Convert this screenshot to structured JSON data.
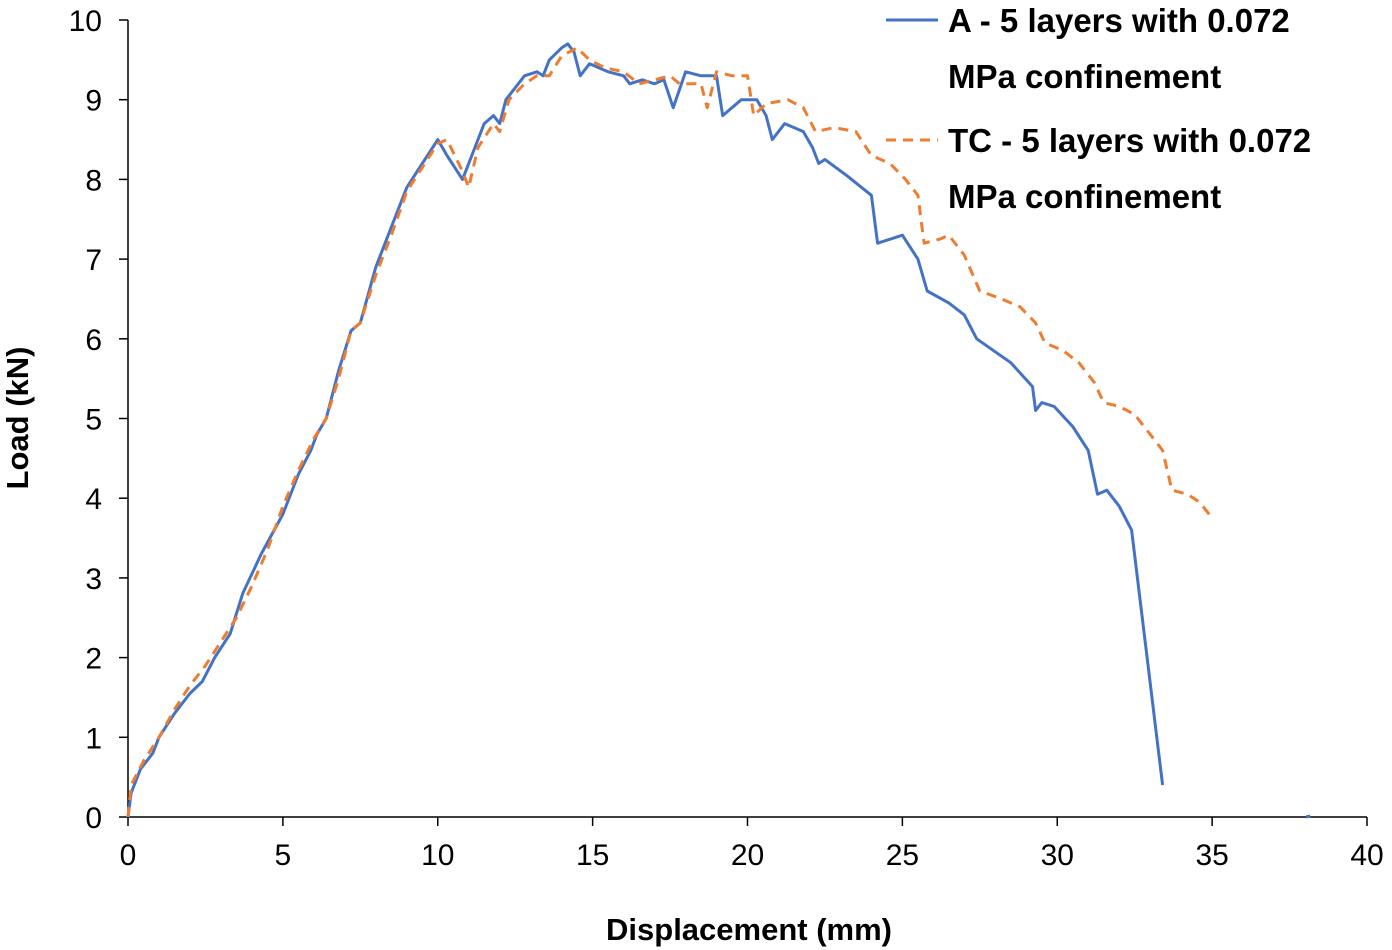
{
  "chart_data": {
    "type": "line",
    "title": "",
    "xlabel": "Displacement (mm)",
    "ylabel": "Load (kN)",
    "xlim": [
      0,
      40
    ],
    "ylim": [
      0,
      10
    ],
    "x_ticks": [
      "0",
      "5",
      "10",
      "15",
      "20",
      "25",
      "30",
      "35",
      "40"
    ],
    "y_ticks": [
      "0",
      "1",
      "2",
      "3",
      "4",
      "5",
      "6",
      "7",
      "8",
      "9",
      "10"
    ],
    "grid": false,
    "legend_position": "top-right",
    "series": [
      {
        "name": "A - 5 layers with 0.072 MPa confinement",
        "legend_lines": [
          "A - 5 layers with 0.072",
          "MPa confinement"
        ],
        "color": "#4472C4",
        "dash": "solid",
        "points": [
          [
            0,
            0.0
          ],
          [
            0.1,
            0.3
          ],
          [
            0.4,
            0.6
          ],
          [
            0.8,
            0.8
          ],
          [
            1.0,
            1.0
          ],
          [
            1.5,
            1.3
          ],
          [
            2.0,
            1.55
          ],
          [
            2.4,
            1.7
          ],
          [
            2.8,
            2.0
          ],
          [
            3.3,
            2.3
          ],
          [
            3.7,
            2.8
          ],
          [
            4.3,
            3.3
          ],
          [
            5.0,
            3.8
          ],
          [
            5.5,
            4.3
          ],
          [
            5.9,
            4.6
          ],
          [
            6.1,
            4.8
          ],
          [
            6.4,
            5.0
          ],
          [
            6.8,
            5.6
          ],
          [
            7.2,
            6.1
          ],
          [
            7.5,
            6.2
          ],
          [
            8.0,
            6.9
          ],
          [
            8.5,
            7.4
          ],
          [
            9.0,
            7.9
          ],
          [
            9.5,
            8.2
          ],
          [
            10.0,
            8.5
          ],
          [
            10.3,
            8.3
          ],
          [
            10.8,
            8.0
          ],
          [
            11.0,
            8.2
          ],
          [
            11.5,
            8.7
          ],
          [
            11.8,
            8.8
          ],
          [
            12.0,
            8.7
          ],
          [
            12.2,
            9.0
          ],
          [
            12.8,
            9.3
          ],
          [
            13.2,
            9.35
          ],
          [
            13.4,
            9.3
          ],
          [
            13.6,
            9.5
          ],
          [
            14.0,
            9.65
          ],
          [
            14.2,
            9.7
          ],
          [
            14.4,
            9.6
          ],
          [
            14.6,
            9.3
          ],
          [
            14.9,
            9.45
          ],
          [
            15.5,
            9.35
          ],
          [
            16.0,
            9.3
          ],
          [
            16.2,
            9.2
          ],
          [
            16.6,
            9.25
          ],
          [
            17.0,
            9.2
          ],
          [
            17.3,
            9.25
          ],
          [
            17.6,
            8.9
          ],
          [
            18.0,
            9.35
          ],
          [
            18.5,
            9.3
          ],
          [
            19.0,
            9.3
          ],
          [
            19.2,
            8.8
          ],
          [
            19.8,
            9.0
          ],
          [
            20.3,
            9.0
          ],
          [
            20.6,
            8.8
          ],
          [
            20.8,
            8.5
          ],
          [
            21.2,
            8.7
          ],
          [
            21.8,
            8.6
          ],
          [
            22.1,
            8.4
          ],
          [
            22.3,
            8.2
          ],
          [
            22.5,
            8.25
          ],
          [
            23.2,
            8.05
          ],
          [
            24.0,
            7.8
          ],
          [
            24.2,
            7.2
          ],
          [
            25.0,
            7.3
          ],
          [
            25.5,
            7.0
          ],
          [
            25.8,
            6.6
          ],
          [
            26.5,
            6.45
          ],
          [
            27.0,
            6.3
          ],
          [
            27.4,
            6.0
          ],
          [
            28.5,
            5.7
          ],
          [
            29.2,
            5.4
          ],
          [
            29.3,
            5.1
          ],
          [
            29.5,
            5.2
          ],
          [
            29.9,
            5.15
          ],
          [
            30.5,
            4.9
          ],
          [
            31.0,
            4.6
          ],
          [
            31.3,
            4.05
          ],
          [
            31.6,
            4.1
          ],
          [
            32.0,
            3.9
          ],
          [
            32.4,
            3.6
          ],
          [
            33.4,
            0.4
          ]
        ]
      },
      {
        "name": "TC - 5 layers with 0.072 MPa confinement",
        "legend_lines": [
          "TC - 5 layers with 0.072",
          "MPa confinement"
        ],
        "color": "#ED7D31",
        "dash": "dashed",
        "points": [
          [
            0,
            0.0
          ],
          [
            0.1,
            0.4
          ],
          [
            0.5,
            0.7
          ],
          [
            1.0,
            1.0
          ],
          [
            1.5,
            1.35
          ],
          [
            2.0,
            1.65
          ],
          [
            2.5,
            1.9
          ],
          [
            3.0,
            2.2
          ],
          [
            3.5,
            2.5
          ],
          [
            4.0,
            2.9
          ],
          [
            4.5,
            3.35
          ],
          [
            5.0,
            3.9
          ],
          [
            5.5,
            4.35
          ],
          [
            6.0,
            4.75
          ],
          [
            6.4,
            5.0
          ],
          [
            6.8,
            5.5
          ],
          [
            7.2,
            6.1
          ],
          [
            7.5,
            6.2
          ],
          [
            8.0,
            6.8
          ],
          [
            8.5,
            7.3
          ],
          [
            9.0,
            7.85
          ],
          [
            9.5,
            8.15
          ],
          [
            10.0,
            8.45
          ],
          [
            10.3,
            8.5
          ],
          [
            10.8,
            8.1
          ],
          [
            11.0,
            7.9
          ],
          [
            11.3,
            8.4
          ],
          [
            11.8,
            8.7
          ],
          [
            12.0,
            8.6
          ],
          [
            12.3,
            9.0
          ],
          [
            12.8,
            9.2
          ],
          [
            13.2,
            9.3
          ],
          [
            13.6,
            9.3
          ],
          [
            14.0,
            9.55
          ],
          [
            14.5,
            9.65
          ],
          [
            14.9,
            9.5
          ],
          [
            15.4,
            9.4
          ],
          [
            16.0,
            9.35
          ],
          [
            16.5,
            9.2
          ],
          [
            17.0,
            9.25
          ],
          [
            17.5,
            9.3
          ],
          [
            17.8,
            9.2
          ],
          [
            18.2,
            9.2
          ],
          [
            18.5,
            9.2
          ],
          [
            18.7,
            8.9
          ],
          [
            19.0,
            9.35
          ],
          [
            19.5,
            9.3
          ],
          [
            20.0,
            9.3
          ],
          [
            20.2,
            8.8
          ],
          [
            20.6,
            8.95
          ],
          [
            21.3,
            9.0
          ],
          [
            21.8,
            8.9
          ],
          [
            22.2,
            8.6
          ],
          [
            22.8,
            8.65
          ],
          [
            23.5,
            8.6
          ],
          [
            24.0,
            8.3
          ],
          [
            24.6,
            8.2
          ],
          [
            25.1,
            8.0
          ],
          [
            25.5,
            7.8
          ],
          [
            25.7,
            7.2
          ],
          [
            26.2,
            7.25
          ],
          [
            26.5,
            7.3
          ],
          [
            27.0,
            7.05
          ],
          [
            27.5,
            6.6
          ],
          [
            28.2,
            6.5
          ],
          [
            28.8,
            6.4
          ],
          [
            29.3,
            6.2
          ],
          [
            29.6,
            5.95
          ],
          [
            30.2,
            5.85
          ],
          [
            30.7,
            5.7
          ],
          [
            31.2,
            5.45
          ],
          [
            31.5,
            5.2
          ],
          [
            32.0,
            5.15
          ],
          [
            32.5,
            5.05
          ],
          [
            33.0,
            4.8
          ],
          [
            33.4,
            4.6
          ],
          [
            33.7,
            4.1
          ],
          [
            34.2,
            4.05
          ],
          [
            34.6,
            3.95
          ],
          [
            35.0,
            3.75
          ]
        ]
      }
    ],
    "annotations": [
      {
        "type": "marker",
        "x": 38.1,
        "y": 0.0,
        "color": "#4472C4"
      }
    ]
  }
}
